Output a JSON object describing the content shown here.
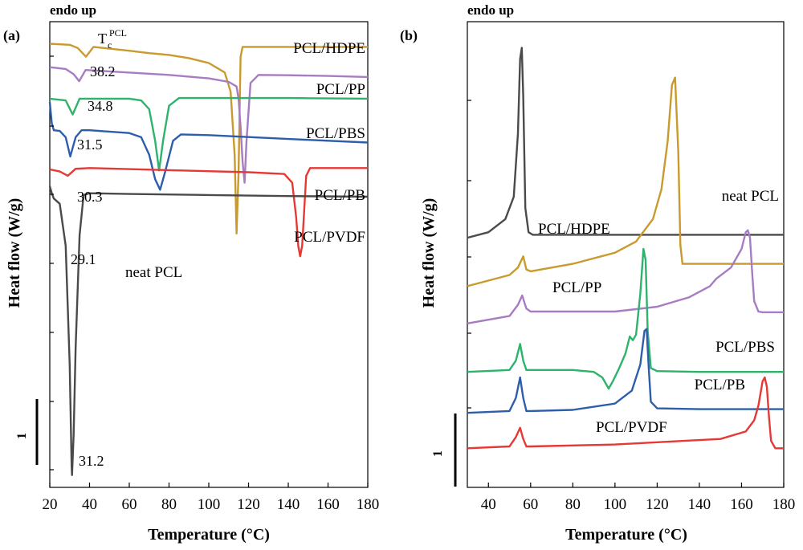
{
  "chart_data": [
    {
      "panel_label": "(a)",
      "type": "line",
      "title": "endo up",
      "xlabel": "Temperature (°C)",
      "ylabel": "Heat flow (W/g)",
      "xlim": [
        20,
        180
      ],
      "x_ticks": [
        "20",
        "40",
        "60",
        "80",
        "100",
        "120",
        "140",
        "160",
        "180"
      ],
      "scale_bar_label": "1",
      "tc_label": {
        "base": "T",
        "sub": "c",
        "sup": "PCL"
      },
      "peak_labels": [
        "38.2",
        "34.8",
        "31.5",
        "30.3",
        "29.1",
        "31.2"
      ],
      "series": [
        {
          "name": "PCL/HDPE",
          "color": "#C99A2E",
          "x": [
            20,
            30,
            34,
            38.2,
            42,
            50,
            60,
            70,
            80,
            90,
            100,
            108,
            111,
            113,
            114,
            115,
            116,
            117,
            120,
            140,
            160,
            180
          ],
          "y": [
            6.17,
            6.14,
            6.05,
            5.8,
            6.08,
            6.03,
            5.97,
            5.9,
            5.85,
            5.76,
            5.62,
            5.35,
            4.8,
            3.0,
            0.75,
            2.5,
            5.8,
            6.08,
            6.08,
            6.08,
            6.08,
            6.08
          ]
        },
        {
          "name": "PCL/PP",
          "color": "#A77CC2",
          "x": [
            20,
            28,
            32,
            34.8,
            38,
            50,
            80,
            100,
            110,
            114,
            115,
            116,
            117,
            118,
            119,
            121,
            125,
            140,
            160,
            180
          ],
          "y": [
            5.5,
            5.45,
            5.3,
            5.1,
            5.42,
            5.38,
            5.28,
            5.18,
            5.08,
            4.95,
            4.6,
            3.8,
            2.8,
            2.2,
            3.4,
            5.05,
            5.28,
            5.27,
            5.25,
            5.22
          ]
        },
        {
          "name": "PCL/PBS",
          "color": "#2DB36B",
          "x": [
            20,
            28,
            31.5,
            35,
            40,
            60,
            66,
            70,
            73,
            75,
            77,
            80,
            85,
            100,
            140,
            180
          ],
          "y": [
            4.6,
            4.55,
            4.15,
            4.6,
            4.6,
            4.6,
            4.55,
            4.3,
            3.4,
            2.55,
            3.4,
            4.4,
            4.62,
            4.62,
            4.62,
            4.6
          ]
        },
        {
          "name": "PCL/PB",
          "color": "#2E5EAA",
          "x": [
            20,
            21,
            22,
            25,
            28,
            30.3,
            33,
            36,
            40,
            60,
            66,
            70,
            73,
            75.5,
            78,
            82,
            86,
            100,
            140,
            180
          ],
          "y": [
            4.5,
            3.9,
            3.7,
            3.68,
            3.5,
            2.95,
            3.5,
            3.7,
            3.7,
            3.62,
            3.5,
            3.0,
            2.3,
            2.0,
            2.5,
            3.4,
            3.58,
            3.56,
            3.45,
            3.35
          ]
        },
        {
          "name": "PCL/PVDF",
          "color": "#E53935",
          "x": [
            20,
            25,
            29.1,
            33,
            40,
            80,
            120,
            138,
            142,
            144,
            145,
            146,
            147,
            148,
            149,
            151,
            160,
            180
          ],
          "y": [
            2.58,
            2.52,
            2.4,
            2.6,
            2.62,
            2.56,
            2.5,
            2.45,
            2.2,
            1.2,
            0.4,
            0.1,
            0.4,
            1.4,
            2.4,
            2.62,
            2.62,
            2.62
          ],
          "x_note": "",
          "y_note": ""
        },
        {
          "name": "neat PCL",
          "color": "#4A4A4A",
          "x": [
            20,
            21,
            22,
            25,
            28,
            30,
            31,
            31.2,
            32,
            33,
            35,
            37,
            40,
            60,
            100,
            140,
            180
          ],
          "y": [
            2.1,
            1.9,
            1.75,
            1.6,
            0.4,
            -3.0,
            -5.9,
            -6.15,
            -5.0,
            -2.5,
            0.7,
            1.85,
            1.9,
            1.88,
            1.85,
            1.82,
            1.8
          ]
        }
      ]
    },
    {
      "panel_label": "(b)",
      "type": "line",
      "title": "endo up",
      "xlabel": "Temperature (°C)",
      "ylabel": "Heat flow (W/g)",
      "xlim": [
        30,
        180
      ],
      "x_ticks": [
        "40",
        "60",
        "80",
        "100",
        "120",
        "140",
        "160",
        "180"
      ],
      "scale_bar_label": "1",
      "series": [
        {
          "name": "neat PCL",
          "color": "#4A4A4A",
          "x": [
            30,
            40,
            48,
            52,
            54,
            55,
            55.8,
            56.5,
            57.5,
            59,
            61,
            70,
            100,
            140,
            180
          ],
          "y": [
            6.7,
            6.85,
            7.2,
            7.8,
            9.5,
            11.5,
            11.8,
            10.5,
            7.5,
            6.85,
            6.78,
            6.78,
            6.78,
            6.78,
            6.78
          ]
        },
        {
          "name": "PCL/HDPE",
          "color": "#C99A2E",
          "x": [
            30,
            50,
            54,
            56.5,
            58,
            60,
            80,
            100,
            110,
            118,
            122,
            125,
            127,
            128.5,
            130,
            131,
            132,
            135,
            150,
            180
          ],
          "y": [
            5.4,
            5.7,
            5.9,
            6.2,
            5.85,
            5.8,
            6.0,
            6.3,
            6.6,
            7.2,
            8.0,
            9.3,
            10.8,
            11.0,
            9.0,
            6.5,
            6.0,
            6.0,
            6.0,
            6.0
          ]
        },
        {
          "name": "PCL/PP",
          "color": "#A77CC2",
          "x": [
            30,
            50,
            54,
            56,
            58,
            60,
            100,
            120,
            135,
            145,
            148,
            155,
            160,
            162,
            163,
            164,
            165,
            166,
            168,
            170,
            180
          ],
          "y": [
            4.4,
            4.6,
            4.9,
            5.15,
            4.8,
            4.72,
            4.72,
            4.85,
            5.1,
            5.4,
            5.6,
            5.9,
            6.4,
            6.85,
            6.9,
            6.7,
            5.8,
            5.0,
            4.72,
            4.7,
            4.7
          ]
        },
        {
          "name": "PCL/PBS",
          "color": "#2DB36B",
          "x": [
            30,
            50,
            53,
            55,
            56.5,
            58,
            60,
            80,
            90,
            94,
            97,
            99,
            102,
            105,
            107,
            108.5,
            110,
            112,
            113.5,
            114.5,
            115.5,
            117,
            120,
            140,
            180
          ],
          "y": [
            3.1,
            3.15,
            3.4,
            3.85,
            3.4,
            3.15,
            3.15,
            3.15,
            3.1,
            2.95,
            2.65,
            2.85,
            3.2,
            3.6,
            4.05,
            3.95,
            4.1,
            5.2,
            6.4,
            6.1,
            4.2,
            3.2,
            3.12,
            3.1,
            3.1
          ]
        },
        {
          "name": "PCL/PB",
          "color": "#2E5EAA",
          "x": [
            30,
            50,
            53,
            55,
            56.5,
            58,
            60,
            80,
            100,
            108,
            112,
            114,
            115,
            116,
            117,
            120,
            140,
            180
          ],
          "y": [
            2.0,
            2.05,
            2.4,
            2.95,
            2.4,
            2.05,
            2.05,
            2.08,
            2.25,
            2.6,
            3.3,
            4.2,
            4.25,
            3.2,
            2.3,
            2.12,
            2.1,
            2.1
          ]
        },
        {
          "name": "PCL/PVDF",
          "color": "#E53935",
          "x": [
            30,
            50,
            53,
            55,
            56.5,
            58,
            60,
            100,
            150,
            162,
            166,
            168,
            170,
            171,
            172,
            173,
            174,
            176,
            180
          ],
          "y": [
            1.05,
            1.1,
            1.35,
            1.6,
            1.3,
            1.1,
            1.1,
            1.15,
            1.3,
            1.5,
            1.8,
            2.2,
            2.85,
            2.95,
            2.7,
            1.9,
            1.25,
            1.05,
            1.05
          ]
        }
      ]
    }
  ]
}
